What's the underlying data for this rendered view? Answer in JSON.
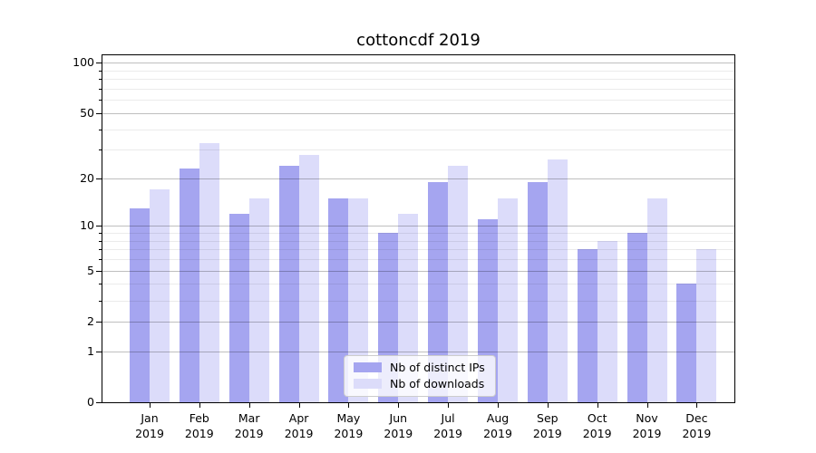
{
  "chart_data": {
    "type": "bar",
    "title": "cottoncdf 2019",
    "categories": [
      "Jan 2019",
      "Feb 2019",
      "Mar 2019",
      "Apr 2019",
      "May 2019",
      "Jun 2019",
      "Jul 2019",
      "Aug 2019",
      "Sep 2019",
      "Oct 2019",
      "Nov 2019",
      "Dec 2019"
    ],
    "series": [
      {
        "name": "Nb of distinct IPs",
        "color": "#a5a5f0",
        "values": [
          13,
          23,
          12,
          24,
          15,
          9,
          19,
          11,
          19,
          7,
          9,
          4
        ]
      },
      {
        "name": "Nb of downloads",
        "color": "#dcdcfa",
        "values": [
          17,
          33,
          15,
          28,
          15,
          12,
          24,
          15,
          26,
          8,
          15,
          7
        ]
      }
    ],
    "xlabel": "",
    "ylabel": "",
    "y_axis": {
      "scale": "log1p",
      "max": 111,
      "ticks": [
        100,
        50,
        20,
        10,
        5,
        2,
        1,
        0
      ],
      "minor_ticks": [
        3,
        4,
        6,
        7,
        8,
        9,
        30,
        40,
        60,
        70,
        80,
        90
      ]
    },
    "grid": "horizontal major and minor gridlines drawn over bars",
    "legend_position": "lower center"
  },
  "colors": {
    "background": "#ffffff",
    "bar_distinct_ips": "#a5a5f0",
    "bar_downloads": "#dcdcfa",
    "spine": "#000000",
    "legend_border": "#cccccc"
  }
}
